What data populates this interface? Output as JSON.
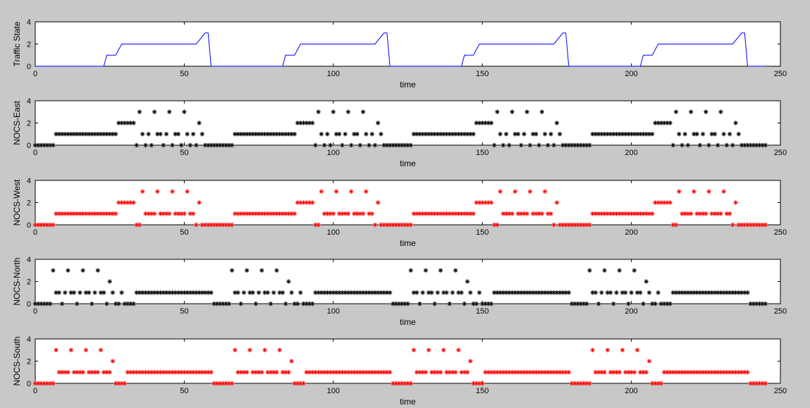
{
  "figure": {
    "background": "#c8c8c8"
  },
  "chart_data": [
    {
      "type": "line",
      "ylabel": "Traffic State",
      "xlabel": "time",
      "xlim": [
        0,
        250
      ],
      "ylim": [
        0,
        4
      ],
      "xticks": [
        0,
        50,
        100,
        150,
        200,
        250
      ],
      "yticks": [
        0,
        2,
        4
      ],
      "grid": false,
      "series": [
        {
          "color": "#0000ff",
          "x": [
            0,
            23,
            24,
            27,
            29,
            54,
            57,
            58,
            59,
            83,
            84,
            87,
            89,
            114,
            117,
            118,
            119,
            143,
            144,
            147,
            149,
            174,
            177,
            178,
            179,
            203,
            204,
            207,
            209,
            234,
            237,
            238,
            239,
            245
          ],
          "y": [
            0,
            0,
            1,
            1,
            2,
            2,
            3,
            3,
            0,
            0,
            1,
            1,
            2,
            2,
            3,
            3,
            0,
            0,
            1,
            1,
            2,
            2,
            3,
            3,
            0,
            0,
            1,
            1,
            2,
            2,
            3,
            3,
            0,
            0
          ]
        }
      ]
    },
    {
      "type": "scatter",
      "marker": "*",
      "ylabel": "NOCS-East",
      "xlabel": "time",
      "xlim": [
        0,
        250
      ],
      "ylim": [
        0,
        4
      ],
      "xticks": [
        0,
        50,
        100,
        150,
        200,
        250
      ],
      "yticks": [
        0,
        2,
        4
      ],
      "period": 60,
      "x_end": 245,
      "series": [
        {
          "color": "#000000",
          "pattern": [
            [
              0,
              0
            ],
            [
              1,
              0
            ],
            [
              2,
              0
            ],
            [
              3,
              0
            ],
            [
              4,
              0
            ],
            [
              5,
              0
            ],
            [
              6,
              0
            ],
            [
              7,
              1
            ],
            [
              8,
              1
            ],
            [
              9,
              1
            ],
            [
              10,
              1
            ],
            [
              11,
              1
            ],
            [
              12,
              1
            ],
            [
              13,
              1
            ],
            [
              14,
              1
            ],
            [
              15,
              1
            ],
            [
              16,
              1
            ],
            [
              17,
              1
            ],
            [
              18,
              1
            ],
            [
              19,
              1
            ],
            [
              20,
              1
            ],
            [
              21,
              1
            ],
            [
              22,
              1
            ],
            [
              23,
              1
            ],
            [
              24,
              1
            ],
            [
              25,
              1
            ],
            [
              26,
              1
            ],
            [
              27,
              1
            ],
            [
              28,
              2
            ],
            [
              29,
              2
            ],
            [
              30,
              2
            ],
            [
              31,
              2
            ],
            [
              32,
              2
            ],
            [
              33,
              2
            ],
            [
              34,
              0
            ],
            [
              35,
              3
            ],
            [
              36,
              1
            ],
            [
              37,
              0
            ],
            [
              38,
              1
            ],
            [
              39,
              0
            ],
            [
              40,
              3
            ],
            [
              41,
              1
            ],
            [
              42,
              1
            ],
            [
              43,
              0
            ],
            [
              44,
              1
            ],
            [
              45,
              3
            ],
            [
              46,
              0
            ],
            [
              47,
              1
            ],
            [
              48,
              1
            ],
            [
              49,
              0
            ],
            [
              50,
              3
            ],
            [
              51,
              1
            ],
            [
              52,
              0
            ],
            [
              53,
              1
            ],
            [
              54,
              0
            ],
            [
              55,
              2
            ],
            [
              56,
              1
            ],
            [
              57,
              0
            ],
            [
              58,
              0
            ],
            [
              59,
              0
            ]
          ]
        }
      ]
    },
    {
      "type": "scatter",
      "marker": "*",
      "ylabel": "NOCS-West",
      "xlabel": "time",
      "xlim": [
        0,
        250
      ],
      "ylim": [
        0,
        4
      ],
      "xticks": [
        0,
        50,
        100,
        150,
        200,
        250
      ],
      "yticks": [
        0,
        2,
        4
      ],
      "period": 60,
      "x_end": 245,
      "series": [
        {
          "color": "#ff0000",
          "pattern": [
            [
              0,
              0
            ],
            [
              1,
              0
            ],
            [
              2,
              0
            ],
            [
              3,
              0
            ],
            [
              4,
              0
            ],
            [
              5,
              0
            ],
            [
              6,
              0
            ],
            [
              7,
              1
            ],
            [
              8,
              1
            ],
            [
              9,
              1
            ],
            [
              10,
              1
            ],
            [
              11,
              1
            ],
            [
              12,
              1
            ],
            [
              13,
              1
            ],
            [
              14,
              1
            ],
            [
              15,
              1
            ],
            [
              16,
              1
            ],
            [
              17,
              1
            ],
            [
              18,
              1
            ],
            [
              19,
              1
            ],
            [
              20,
              1
            ],
            [
              21,
              1
            ],
            [
              22,
              1
            ],
            [
              23,
              1
            ],
            [
              24,
              1
            ],
            [
              25,
              1
            ],
            [
              26,
              1
            ],
            [
              27,
              1
            ],
            [
              28,
              2
            ],
            [
              29,
              2
            ],
            [
              30,
              2
            ],
            [
              31,
              2
            ],
            [
              32,
              2
            ],
            [
              33,
              2
            ],
            [
              34,
              0
            ],
            [
              35,
              0
            ],
            [
              36,
              3
            ],
            [
              37,
              1
            ],
            [
              38,
              1
            ],
            [
              39,
              1
            ],
            [
              40,
              1
            ],
            [
              41,
              3
            ],
            [
              42,
              1
            ],
            [
              43,
              1
            ],
            [
              44,
              1
            ],
            [
              45,
              1
            ],
            [
              46,
              3
            ],
            [
              47,
              1
            ],
            [
              48,
              1
            ],
            [
              49,
              1
            ],
            [
              50,
              1
            ],
            [
              51,
              3
            ],
            [
              52,
              1
            ],
            [
              53,
              1
            ],
            [
              54,
              0
            ],
            [
              55,
              2
            ],
            [
              56,
              0
            ],
            [
              57,
              0
            ],
            [
              58,
              0
            ],
            [
              59,
              0
            ]
          ]
        }
      ]
    },
    {
      "type": "scatter",
      "marker": "*",
      "ylabel": "NOCS-North",
      "xlabel": "time",
      "xlim": [
        0,
        250
      ],
      "ylim": [
        0,
        4
      ],
      "xticks": [
        0,
        50,
        100,
        150,
        200,
        250
      ],
      "yticks": [
        0,
        2,
        4
      ],
      "period": 60,
      "x_end": 245,
      "series": [
        {
          "color": "#000000",
          "pattern": [
            [
              0,
              0
            ],
            [
              1,
              0
            ],
            [
              2,
              0
            ],
            [
              3,
              0
            ],
            [
              4,
              0
            ],
            [
              5,
              0
            ],
            [
              6,
              3
            ],
            [
              7,
              1
            ],
            [
              8,
              1
            ],
            [
              9,
              0
            ],
            [
              10,
              1
            ],
            [
              11,
              3
            ],
            [
              12,
              1
            ],
            [
              13,
              1
            ],
            [
              14,
              0
            ],
            [
              15,
              1
            ],
            [
              16,
              3
            ],
            [
              17,
              1
            ],
            [
              18,
              1
            ],
            [
              19,
              0
            ],
            [
              20,
              1
            ],
            [
              21,
              3
            ],
            [
              22,
              1
            ],
            [
              23,
              1
            ],
            [
              24,
              0
            ],
            [
              25,
              2
            ],
            [
              26,
              1
            ],
            [
              27,
              0
            ],
            [
              28,
              0
            ],
            [
              29,
              1
            ],
            [
              30,
              0
            ],
            [
              31,
              0
            ],
            [
              32,
              0
            ],
            [
              33,
              0
            ],
            [
              34,
              1
            ],
            [
              35,
              1
            ],
            [
              36,
              1
            ],
            [
              37,
              1
            ],
            [
              38,
              1
            ],
            [
              39,
              1
            ],
            [
              40,
              1
            ],
            [
              41,
              1
            ],
            [
              42,
              1
            ],
            [
              43,
              1
            ],
            [
              44,
              1
            ],
            [
              45,
              1
            ],
            [
              46,
              1
            ],
            [
              47,
              1
            ],
            [
              48,
              1
            ],
            [
              49,
              1
            ],
            [
              50,
              1
            ],
            [
              51,
              1
            ],
            [
              52,
              1
            ],
            [
              53,
              1
            ],
            [
              54,
              1
            ],
            [
              55,
              1
            ],
            [
              56,
              1
            ],
            [
              57,
              1
            ],
            [
              58,
              1
            ],
            [
              59,
              1
            ]
          ]
        }
      ]
    },
    {
      "type": "scatter",
      "marker": "*",
      "ylabel": "NOCS-South",
      "xlabel": "time",
      "xlim": [
        0,
        250
      ],
      "ylim": [
        0,
        4
      ],
      "xticks": [
        0,
        50,
        100,
        150,
        200,
        250
      ],
      "yticks": [
        0,
        2,
        4
      ],
      "period": 60,
      "x_end": 245,
      "series": [
        {
          "color": "#ff0000",
          "pattern": [
            [
              0,
              0
            ],
            [
              1,
              0
            ],
            [
              2,
              0
            ],
            [
              3,
              0
            ],
            [
              4,
              0
            ],
            [
              5,
              0
            ],
            [
              6,
              0
            ],
            [
              7,
              3
            ],
            [
              8,
              1
            ],
            [
              9,
              1
            ],
            [
              10,
              1
            ],
            [
              11,
              1
            ],
            [
              12,
              3
            ],
            [
              13,
              1
            ],
            [
              14,
              1
            ],
            [
              15,
              1
            ],
            [
              16,
              1
            ],
            [
              17,
              3
            ],
            [
              18,
              1
            ],
            [
              19,
              1
            ],
            [
              20,
              1
            ],
            [
              21,
              1
            ],
            [
              22,
              3
            ],
            [
              23,
              1
            ],
            [
              24,
              1
            ],
            [
              25,
              1
            ],
            [
              26,
              2
            ],
            [
              27,
              0
            ],
            [
              28,
              0
            ],
            [
              29,
              0
            ],
            [
              30,
              0
            ],
            [
              31,
              1
            ],
            [
              32,
              1
            ],
            [
              33,
              1
            ],
            [
              34,
              1
            ],
            [
              35,
              1
            ],
            [
              36,
              1
            ],
            [
              37,
              1
            ],
            [
              38,
              1
            ],
            [
              39,
              1
            ],
            [
              40,
              1
            ],
            [
              41,
              1
            ],
            [
              42,
              1
            ],
            [
              43,
              1
            ],
            [
              44,
              1
            ],
            [
              45,
              1
            ],
            [
              46,
              1
            ],
            [
              47,
              1
            ],
            [
              48,
              1
            ],
            [
              49,
              1
            ],
            [
              50,
              1
            ],
            [
              51,
              1
            ],
            [
              52,
              1
            ],
            [
              53,
              1
            ],
            [
              54,
              1
            ],
            [
              55,
              1
            ],
            [
              56,
              1
            ],
            [
              57,
              1
            ],
            [
              58,
              1
            ],
            [
              59,
              1
            ]
          ]
        }
      ]
    }
  ]
}
